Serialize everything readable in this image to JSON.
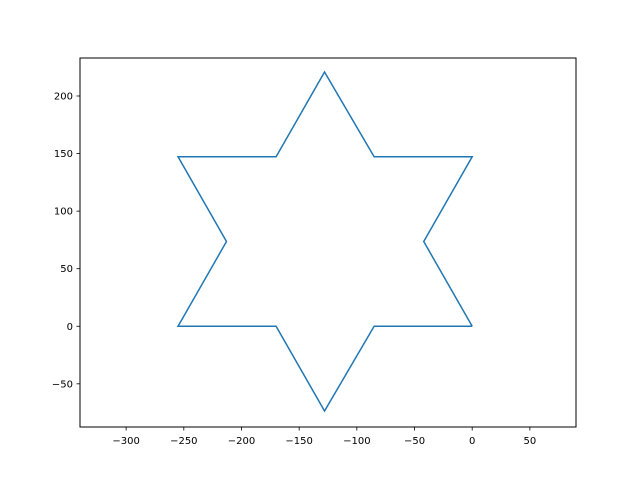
{
  "chart_data": {
    "type": "line",
    "title": "",
    "xlabel": "",
    "ylabel": "",
    "xlim": [
      -340,
      90
    ],
    "ylim": [
      -87.5,
      233
    ],
    "xticks": [
      -300,
      -250,
      -200,
      -150,
      -100,
      -50,
      0,
      50
    ],
    "xtick_labels": [
      "−300",
      "−250",
      "−200",
      "−150",
      "−100",
      "−50",
      "0",
      "50"
    ],
    "yticks": [
      -50,
      0,
      50,
      100,
      150,
      200
    ],
    "ytick_labels": [
      "−50",
      "0",
      "50",
      "100",
      "150",
      "200"
    ],
    "grid": false,
    "legend": "none",
    "series": [
      {
        "color": "#1f77b4",
        "x": [
          0,
          -85,
          -128,
          -170,
          -255,
          -213,
          -255,
          -170,
          -128,
          -85,
          0,
          -42,
          0
        ],
        "y": [
          0,
          0,
          -73.6,
          0,
          0,
          73.6,
          147.2,
          147.2,
          220.8,
          147.2,
          147.2,
          73.6,
          0
        ]
      }
    ]
  }
}
